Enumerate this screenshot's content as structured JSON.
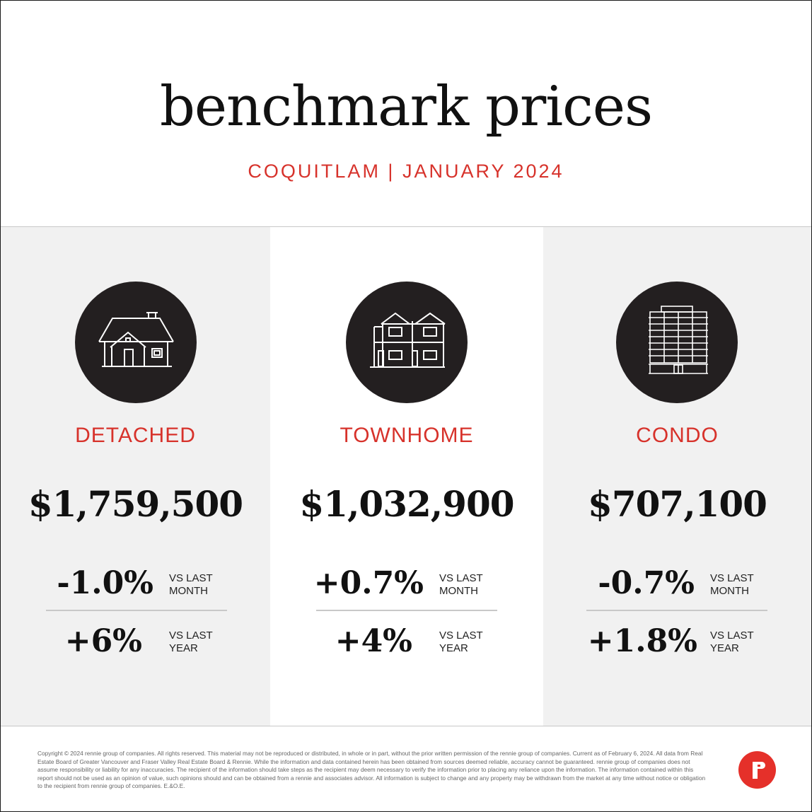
{
  "header": {
    "title": "benchmark prices",
    "subtitle": "COQUITLAM | JANUARY 2024"
  },
  "categories": [
    {
      "type": "DETACHED",
      "icon": "detached-house-icon",
      "price": "$1,759,500",
      "month_change": "-1.0%",
      "month_label_1": "VS LAST",
      "month_label_2": "MONTH",
      "year_change": "+6%",
      "year_label_1": "VS LAST",
      "year_label_2": "YEAR"
    },
    {
      "type": "TOWNHOME",
      "icon": "townhome-icon",
      "price": "$1,032,900",
      "month_change": "+0.7%",
      "month_label_1": "VS LAST",
      "month_label_2": "MONTH",
      "year_change": "+4%",
      "year_label_1": "VS LAST",
      "year_label_2": "YEAR"
    },
    {
      "type": "CONDO",
      "icon": "condo-building-icon",
      "price": "$707,100",
      "month_change": "-0.7%",
      "month_label_1": "VS LAST",
      "month_label_2": "MONTH",
      "year_change": "+1.8%",
      "year_label_1": "VS LAST",
      "year_label_2": "YEAR"
    }
  ],
  "footer": {
    "disclaimer": "Copyright © 2024 rennie group of companies. All rights reserved. This material may not be reproduced or distributed, in whole or in part, without the prior written permission of the rennie group of companies. Current as of February 6, 2024. All data from Real Estate Board of Greater Vancouver and Fraser Valley Real Estate Board & Rennie. While the information and data contained herein has been obtained from sources deemed reliable, accuracy cannot be guaranteed. rennie group of companies does not assume responsibility or liability for any inaccuracies. The recipient of the information should take steps as the recipient may deem necessary to verify the information prior to placing any reliance upon the information. The information contained within this report should not be used as an opinion of value, such opinions should and can be obtained from a rennie and associates advisor. All information is subject to change and any property may be withdrawn from the market at any time without notice or obligation to the recipient from rennie group of companies. E.&O.E.",
    "logo_letter": "r",
    "logo_icon": "rennie-logo-icon"
  },
  "colors": {
    "accent": "#d7322b",
    "icon_bg": "#231f20",
    "panel_gray": "#f1f1f1"
  }
}
